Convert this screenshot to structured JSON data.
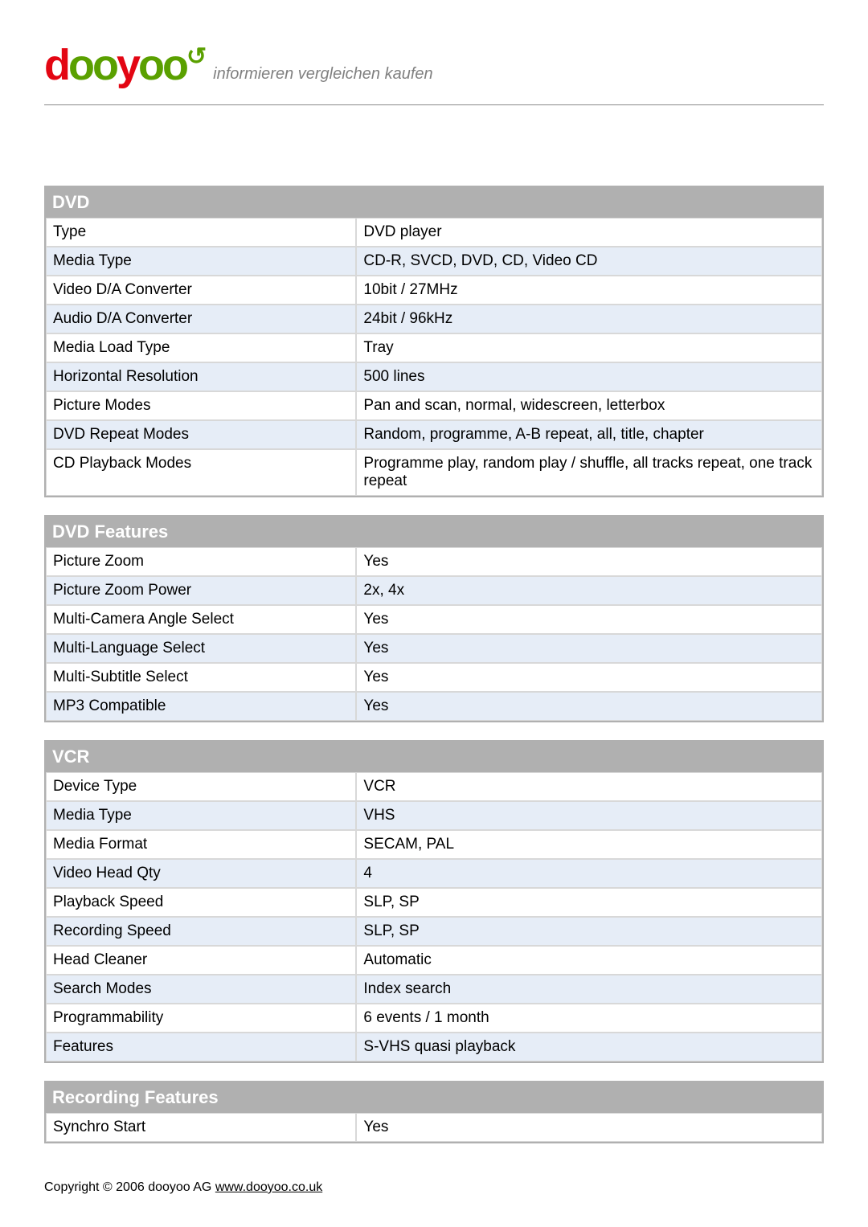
{
  "brand": {
    "name_part1": "d",
    "name_part2": "oo",
    "name_part3": "y",
    "name_part4": "oo",
    "tagline": "informieren vergleichen kaufen",
    "logo_color_primary": "#e30613",
    "logo_color_secondary": "#5aa000",
    "tagline_color": "#808080"
  },
  "styling": {
    "page_bg": "#ffffff",
    "table_border": "#b0b0b0",
    "header_bg": "#b0b0b0",
    "header_text": "#ffffff",
    "row_even_bg": "#e6edf7",
    "row_odd_bg": "#ffffff",
    "cell_border": "#d8d8d8",
    "body_font_size": 19,
    "header_font_size": 22,
    "hr_color": "#888888"
  },
  "sections": [
    {
      "title": "DVD",
      "rows": [
        {
          "label": "Type",
          "value": "DVD player"
        },
        {
          "label": "Media Type",
          "value": "CD-R, SVCD, DVD, CD, Video CD"
        },
        {
          "label": "Video D/A Converter",
          "value": "10bit / 27MHz"
        },
        {
          "label": "Audio D/A Converter",
          "value": "24bit / 96kHz"
        },
        {
          "label": "Media Load Type",
          "value": "Tray"
        },
        {
          "label": "Horizontal Resolution",
          "value": "500 lines"
        },
        {
          "label": "Picture Modes",
          "value": "Pan and scan, normal, widescreen, letterbox"
        },
        {
          "label": "DVD Repeat Modes",
          "value": "Random, programme, A-B repeat, all, title, chapter"
        },
        {
          "label": "CD Playback Modes",
          "value": "Programme play, random play / shuffle, all tracks repeat, one track repeat"
        }
      ]
    },
    {
      "title": "DVD Features",
      "rows": [
        {
          "label": "Picture Zoom",
          "value": "Yes"
        },
        {
          "label": "Picture Zoom Power",
          "value": "2x, 4x"
        },
        {
          "label": "Multi-Camera Angle Select",
          "value": "Yes"
        },
        {
          "label": "Multi-Language Select",
          "value": "Yes"
        },
        {
          "label": "Multi-Subtitle Select",
          "value": "Yes"
        },
        {
          "label": "MP3 Compatible",
          "value": "Yes"
        }
      ]
    },
    {
      "title": "VCR",
      "rows": [
        {
          "label": "Device Type",
          "value": "VCR"
        },
        {
          "label": "Media Type",
          "value": "VHS"
        },
        {
          "label": "Media Format",
          "value": "SECAM, PAL"
        },
        {
          "label": "Video Head Qty",
          "value": "4"
        },
        {
          "label": "Playback Speed",
          "value": "SLP, SP"
        },
        {
          "label": "Recording Speed",
          "value": "SLP, SP"
        },
        {
          "label": "Head Cleaner",
          "value": "Automatic"
        },
        {
          "label": "Search Modes",
          "value": "Index search"
        },
        {
          "label": "Programmability",
          "value": "6 events / 1 month"
        },
        {
          "label": "Features",
          "value": "S-VHS quasi playback"
        }
      ]
    },
    {
      "title": "Recording Features",
      "rows": [
        {
          "label": "Synchro Start",
          "value": "Yes"
        }
      ]
    }
  ],
  "footer": {
    "copyright": "Copyright  ©  2006 dooyoo AG  ",
    "link_text": "www.dooyoo.co.uk"
  }
}
